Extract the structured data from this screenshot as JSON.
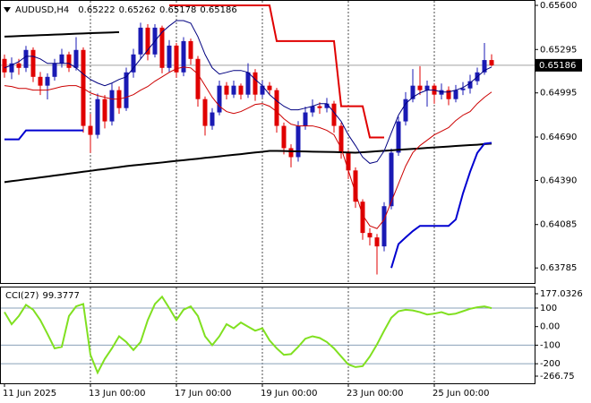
{
  "chart_data": [
    {
      "type": "candlestick",
      "title": "AUDUSD,H4",
      "categories": [
        "11 Jun 2025",
        null,
        null,
        null,
        null,
        null,
        null,
        null,
        null,
        null,
        null,
        null,
        "13 Jun 00:00",
        null,
        null,
        null,
        null,
        null,
        null,
        null,
        null,
        null,
        null,
        null,
        "17 Jun 00:00",
        null,
        null,
        null,
        null,
        null,
        null,
        null,
        null,
        null,
        null,
        null,
        "19 Jun 00:00",
        null,
        null,
        null,
        null,
        null,
        null,
        null,
        null,
        null,
        null,
        null,
        "23 Jun 00:00",
        null,
        null,
        null,
        null,
        null,
        null,
        null,
        null,
        null,
        null,
        null,
        "25 Jun 00:00",
        null,
        null,
        null,
        null,
        null,
        null,
        null,
        null
      ],
      "open": [
        0.6523,
        0.65137,
        0.65199,
        0.65168,
        0.65292,
        0.65106,
        0.65045,
        0.65106,
        0.65199,
        0.65261,
        0.65168,
        0.65292,
        0.64767,
        0.64705,
        0.64952,
        0.64798,
        0.65014,
        0.6489,
        0.65137,
        0.65261,
        0.65446,
        0.65261,
        0.65446,
        0.65168,
        0.65322,
        0.65137,
        0.65353,
        0.6523,
        0.64952,
        0.64767,
        0.6486,
        0.65045,
        0.64983,
        0.65045,
        0.64983,
        0.65137,
        0.64983,
        0.65045,
        0.65014,
        0.64767,
        0.64613,
        0.64551,
        0.64767,
        0.6486,
        0.64903,
        0.6489,
        0.64921,
        0.64767,
        0.64582,
        0.64459,
        0.64243,
        0.64027,
        0.63996,
        0.63934,
        0.64212,
        0.64582,
        0.64798,
        0.64952,
        0.65045,
        0.65014,
        0.65045,
        0.64983,
        0.65014,
        0.64952,
        0.65014,
        0.65026,
        0.65076,
        0.65137,
        0.65222
      ],
      "high": [
        0.6526,
        0.6524,
        0.6523,
        0.6532,
        0.6531,
        0.6514,
        0.6513,
        0.6523,
        0.653,
        0.6528,
        0.6538,
        0.6531,
        0.6485,
        0.6499,
        0.6498,
        0.6506,
        0.6504,
        0.6517,
        0.653,
        0.6548,
        0.6547,
        0.6547,
        0.6546,
        0.6536,
        0.6534,
        0.6538,
        0.6537,
        0.6525,
        0.6497,
        0.6489,
        0.6508,
        0.6507,
        0.6508,
        0.6506,
        0.652,
        0.6516,
        0.6508,
        0.6507,
        0.6503,
        0.6479,
        0.6464,
        0.648,
        0.649,
        0.6495,
        0.6493,
        0.6496,
        0.6494,
        0.6479,
        0.646,
        0.6448,
        0.6426,
        0.6406,
        0.6402,
        0.6424,
        0.6461,
        0.6483,
        0.65,
        0.6516,
        0.6518,
        0.6508,
        0.6506,
        0.6506,
        0.6504,
        0.6505,
        0.6507,
        0.6512,
        0.6517,
        0.6534,
        0.65262
      ],
      "low": [
        0.651,
        0.6509,
        0.6512,
        0.6514,
        0.6507,
        0.6498,
        0.6495,
        0.6508,
        0.6517,
        0.6514,
        0.6515,
        0.6472,
        0.6458,
        0.6468,
        0.6475,
        0.6477,
        0.6485,
        0.6487,
        0.651,
        0.6523,
        0.6522,
        0.6524,
        0.6513,
        0.6514,
        0.651,
        0.6511,
        0.6519,
        0.649,
        0.647,
        0.6474,
        0.6484,
        0.6495,
        0.6496,
        0.6495,
        0.6496,
        0.6494,
        0.6496,
        0.6498,
        0.6472,
        0.6457,
        0.6448,
        0.6452,
        0.6474,
        0.6483,
        0.6485,
        0.6486,
        0.6472,
        0.6454,
        0.644,
        0.642,
        0.6398,
        0.6394,
        0.6374,
        0.639,
        0.6419,
        0.6456,
        0.6477,
        0.6493,
        0.6498,
        0.649,
        0.6492,
        0.6495,
        0.6491,
        0.6493,
        0.6498,
        0.6499,
        0.6505,
        0.6512,
        0.65178
      ],
      "close": [
        0.65137,
        0.65199,
        0.65168,
        0.65292,
        0.65106,
        0.65045,
        0.65106,
        0.65199,
        0.65261,
        0.65168,
        0.65292,
        0.64767,
        0.64705,
        0.64952,
        0.64798,
        0.65014,
        0.6489,
        0.65137,
        0.65261,
        0.65446,
        0.65261,
        0.65446,
        0.65168,
        0.65322,
        0.65137,
        0.65353,
        0.6523,
        0.64952,
        0.64767,
        0.6486,
        0.65045,
        0.64983,
        0.65045,
        0.64983,
        0.65137,
        0.64983,
        0.65045,
        0.65014,
        0.64767,
        0.64613,
        0.64551,
        0.64767,
        0.6486,
        0.64903,
        0.6489,
        0.64921,
        0.64767,
        0.64582,
        0.64459,
        0.64243,
        0.64027,
        0.63996,
        0.63934,
        0.64212,
        0.64582,
        0.64798,
        0.64952,
        0.65045,
        0.65014,
        0.65045,
        0.64983,
        0.65014,
        0.64952,
        0.65014,
        0.65026,
        0.65076,
        0.65137,
        0.65222,
        0.65186
      ],
      "up_color": "#1a1ab4",
      "down_color": "#e00000",
      "price_line": true,
      "lines": [
        {
          "color": "#000000",
          "width": 2,
          "values": [
            0.65384,
            0.65386,
            0.65388,
            0.6539,
            0.65392,
            0.65394,
            0.65396,
            0.65398,
            0.654,
            0.65402,
            0.65404,
            0.65406,
            0.65408,
            0.6541,
            0.65411,
            0.65413,
            0.65415,
            null,
            null,
            null,
            null,
            null,
            null,
            null,
            null,
            null,
            null,
            null,
            null,
            null,
            null,
            null,
            null,
            null,
            null,
            null,
            null,
            null,
            null,
            null,
            null,
            null,
            null,
            null,
            null,
            null,
            null,
            null,
            null,
            null,
            null,
            null,
            null,
            null,
            null,
            null,
            null,
            null,
            null,
            null,
            null,
            null,
            null,
            null,
            null,
            null,
            null,
            null,
            null
          ]
        },
        {
          "color": "#000000",
          "width": 2,
          "values": [
            0.64378,
            0.64385,
            0.64391,
            0.64398,
            0.64404,
            0.64411,
            0.64417,
            0.64424,
            0.6443,
            0.64437,
            0.64443,
            0.6445,
            0.64456,
            0.64463,
            0.64469,
            0.64476,
            0.64482,
            0.64489,
            0.64494,
            0.64499,
            0.64504,
            0.64509,
            0.64514,
            0.6452,
            0.64525,
            0.6453,
            0.64535,
            0.6454,
            0.64546,
            0.64551,
            0.64556,
            0.64562,
            0.64567,
            0.64572,
            0.64578,
            0.64583,
            0.64588,
            0.64594,
            0.64594,
            0.64593,
            0.64592,
            0.64591,
            0.6459,
            0.64589,
            0.64588,
            0.64587,
            0.64586,
            0.64585,
            0.64583,
            0.64582,
            0.64585,
            0.64588,
            0.64592,
            0.64595,
            0.64598,
            0.64602,
            0.64605,
            0.64608,
            0.64611,
            0.64615,
            0.64618,
            0.64621,
            0.64624,
            0.64628,
            0.64631,
            0.64634,
            0.64637,
            0.64641,
            0.64644
          ]
        },
        {
          "color": "#e00000",
          "width": 2,
          "values": [
            null,
            null,
            null,
            null,
            null,
            null,
            null,
            null,
            null,
            null,
            null,
            null,
            null,
            null,
            null,
            null,
            null,
            null,
            null,
            null,
            null,
            null,
            null,
            0.656,
            0.656,
            0.656,
            0.656,
            0.656,
            0.656,
            0.656,
            0.656,
            0.656,
            0.656,
            0.656,
            0.656,
            0.656,
            0.656,
            0.656,
            0.65353,
            0.65353,
            0.65353,
            0.65353,
            0.65353,
            0.65353,
            0.65353,
            0.65353,
            0.65353,
            0.64903,
            0.64903,
            0.64903,
            0.64903,
            0.64687,
            0.64687,
            0.64687,
            null,
            null,
            null,
            null,
            null,
            null,
            null,
            null,
            null,
            null,
            null,
            null,
            null,
            null,
            null
          ]
        },
        {
          "color": "#0000d0",
          "width": 2,
          "values": [
            0.64674,
            0.64674,
            0.64674,
            0.64736,
            0.64736,
            0.64736,
            0.64736,
            0.64736,
            0.64736,
            0.64736,
            0.64736,
            0.64736,
            null,
            null,
            null,
            null,
            null,
            null,
            null,
            null,
            null,
            null,
            null,
            null,
            null,
            null,
            null,
            null,
            null,
            null,
            null,
            null,
            null,
            null,
            null,
            null,
            null,
            null,
            null,
            null,
            null,
            null,
            null,
            null,
            null,
            null,
            null,
            null,
            null,
            null,
            null,
            null,
            null,
            null,
            0.63785,
            0.6395,
            0.63996,
            0.6404,
            0.64076,
            0.64076,
            0.64076,
            0.64076,
            0.64076,
            0.6412,
            0.643,
            0.6445,
            0.6458,
            0.64644,
            0.6465
          ]
        },
        {
          "color": "#000080",
          "width": 1,
          "values": [
            0.65168,
            0.65187,
            0.65211,
            0.65248,
            0.65248,
            0.6523,
            0.65199,
            0.65199,
            0.65199,
            0.65199,
            0.65168,
            0.65125,
            0.65088,
            0.65063,
            0.65045,
            0.65063,
            0.65088,
            0.65106,
            0.65168,
            0.6523,
            0.65292,
            0.65353,
            0.65415,
            0.65458,
            0.65495,
            0.65495,
            0.65477,
            0.65384,
            0.65261,
            0.65168,
            0.65125,
            0.65137,
            0.6515,
            0.6515,
            0.65137,
            0.65088,
            0.65045,
            0.64983,
            0.6494,
            0.64903,
            0.64878,
            0.64878,
            0.6489,
            0.64903,
            0.64921,
            0.64921,
            0.6486,
            0.64798,
            0.64705,
            0.64631,
            0.64551,
            0.64508,
            0.6452,
            0.64594,
            0.64718,
            0.64841,
            0.64921,
            0.64965,
            0.64995,
            0.65014,
            0.65014,
            0.65001,
            0.65001,
            0.65014,
            0.65032,
            0.65063,
            0.65106,
            0.6515,
            0.65174
          ]
        },
        {
          "color": "#cc0000",
          "width": 1,
          "values": [
            0.65045,
            0.65039,
            0.65026,
            0.65026,
            0.65014,
            0.65014,
            0.65014,
            0.65026,
            0.65039,
            0.65045,
            0.65045,
            0.65026,
            0.64995,
            0.64977,
            0.64965,
            0.64952,
            0.64952,
            0.64965,
            0.64983,
            0.65014,
            0.65039,
            0.65076,
            0.65106,
            0.65137,
            0.65162,
            0.65174,
            0.65168,
            0.65125,
            0.65045,
            0.64965,
            0.64903,
            0.64866,
            0.64853,
            0.64866,
            0.6489,
            0.64915,
            0.64921,
            0.64903,
            0.64866,
            0.64816,
            0.64779,
            0.64767,
            0.64767,
            0.64767,
            0.64755,
            0.64736,
            0.64705,
            0.64613,
            0.64459,
            0.64304,
            0.6415,
            0.64076,
            0.64057,
            0.64119,
            0.64243,
            0.64366,
            0.64489,
            0.64582,
            0.64631,
            0.64668,
            0.64705,
            0.6473,
            0.64755,
            0.64804,
            0.64841,
            0.64866,
            0.64921,
            0.64965,
            0.65001
          ]
        }
      ],
      "ylim": [
        0.63681,
        0.65631
      ],
      "yticks": [
        {
          "value": 0.656,
          "label": "0.65600"
        },
        0.65295,
        0.64995,
        {
          "value": 0.6469,
          "label": "0.64690"
        },
        {
          "value": 0.6439,
          "label": "0.64390"
        },
        0.64085,
        0.63785
      ],
      "grid": "vertical"
    },
    {
      "type": "line",
      "title": "CCI(27)",
      "color": "#80e020",
      "values": [
        78,
        13,
        57,
        117,
        91,
        35,
        -39,
        -117,
        -109,
        57,
        109,
        122,
        -152,
        -248,
        -174,
        -117,
        -52,
        -83,
        -126,
        -83,
        35,
        122,
        161,
        100,
        35,
        91,
        109,
        57,
        -52,
        -100,
        -52,
        13,
        -9,
        22,
        0,
        -22,
        -9,
        -74,
        -117,
        -152,
        -148,
        -109,
        -65,
        -52,
        -61,
        -83,
        -117,
        -161,
        -204,
        -218,
        -213,
        -161,
        -96,
        -22,
        48,
        83,
        91,
        87,
        78,
        65,
        70,
        78,
        65,
        70,
        83,
        96,
        104,
        109,
        99.3777
      ],
      "ylim": [
        -266.75,
        177.0326
      ],
      "yticks": [
        177.0326,
        100,
        {
          "value": 0,
          "label": "0.00"
        },
        -100,
        -200,
        -266.75
      ],
      "levels": [
        100,
        -100,
        -200
      ],
      "level_color": "#8aa0b8"
    }
  ]
}
